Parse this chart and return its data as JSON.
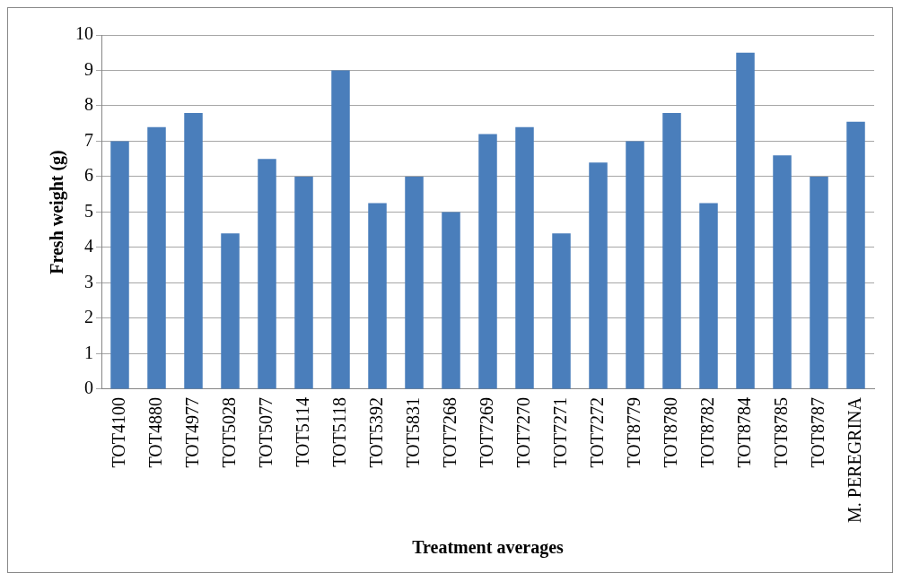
{
  "chart_data": {
    "type": "bar",
    "xlabel": "Treatment averages",
    "ylabel": "Fresh weight (g)",
    "categories": [
      "TOT4100",
      "TOT4880",
      "TOT4977",
      "TOT5028",
      "TOT5077",
      "TOT5114",
      "TOT5118",
      "TOT5392",
      "TOT5831",
      "TOT7268",
      "TOT7269",
      "TOT7270",
      "TOT7271",
      "TOT7272",
      "TOT8779",
      "TOT8780",
      "TOT8782",
      "TOT8784",
      "TOT8785",
      "TOT8787",
      "M. PEREGRINA"
    ],
    "values": [
      7.0,
      7.4,
      7.8,
      4.4,
      6.5,
      6.0,
      9.0,
      5.25,
      6.0,
      5.0,
      7.2,
      7.4,
      4.4,
      6.4,
      7.0,
      7.8,
      5.25,
      9.5,
      6.6,
      6.0,
      7.55
    ],
    "color": "#4a7ebb",
    "ylim": [
      0,
      10
    ],
    "yticks": [
      0,
      1,
      2,
      3,
      4,
      5,
      6,
      7,
      8,
      9,
      10
    ],
    "grid": "y",
    "legend": false
  }
}
